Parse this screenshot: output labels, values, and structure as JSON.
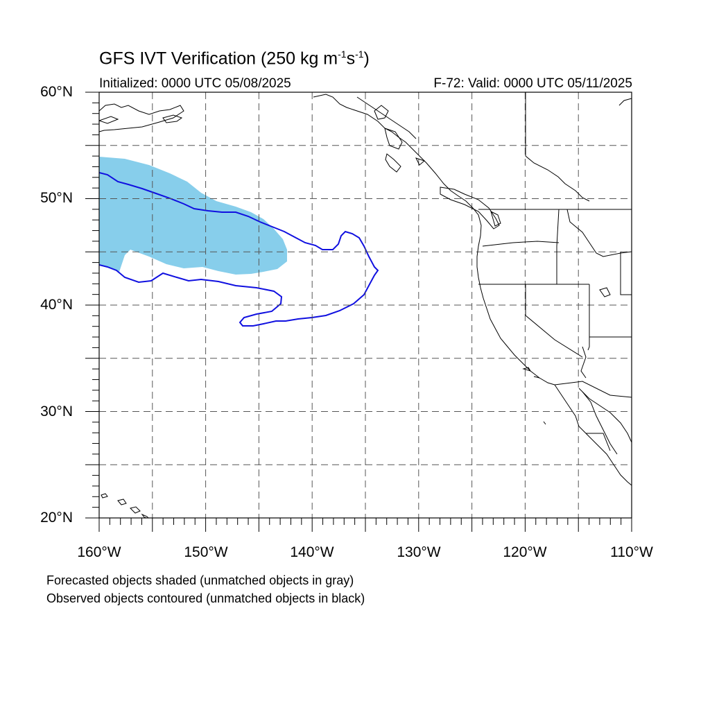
{
  "title": {
    "main": "GFS IVT Verification (250 kg m",
    "sup1": "-1",
    "mid": "s",
    "sup2": "-1",
    "end": ")"
  },
  "initialized": "Initialized: 0000 UTC 05/08/2025",
  "valid": "F-72: Valid: 0000 UTC 05/11/2025",
  "lat_labels": [
    "60°N",
    "50°N",
    "40°N",
    "30°N",
    "20°N"
  ],
  "lon_labels": [
    "160°W",
    "150°W",
    "140°W",
    "130°W",
    "120°W",
    "110°W"
  ],
  "footer": {
    "line1": "Forecasted objects shaded (unmatched objects in gray)",
    "line2": "Observed objects contoured (unmatched objects in black)"
  },
  "colors": {
    "forecast_fill": "#87ceeb",
    "observed_contour": "#1010e0",
    "coastline": "#000000",
    "grid": "#555555"
  },
  "map_extent": {
    "lon_min": -160,
    "lon_max": -110,
    "lat_min": 20,
    "lat_max": 60,
    "grid_lon_step": 5,
    "grid_lat_step": 5
  }
}
